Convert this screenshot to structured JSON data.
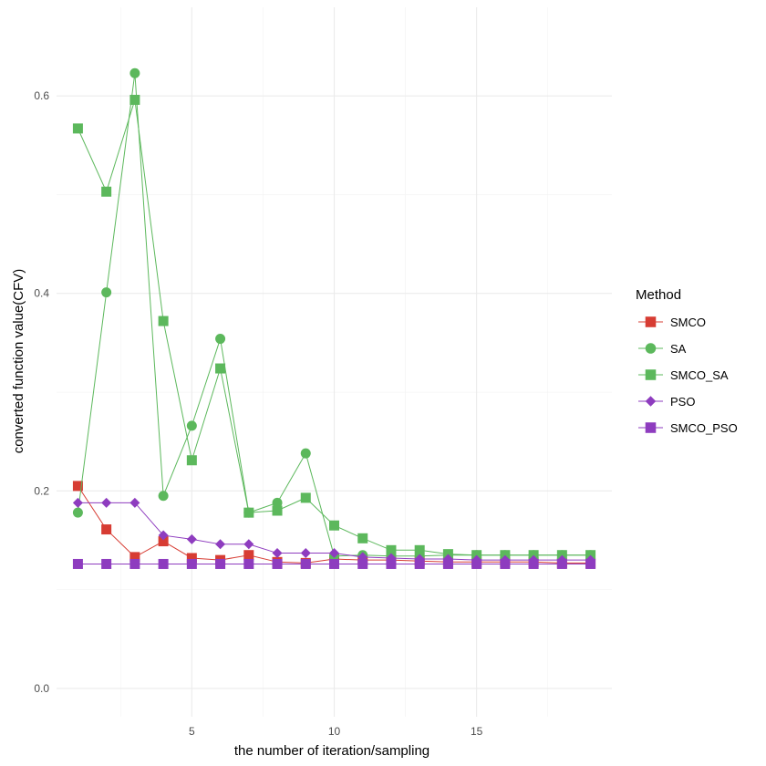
{
  "chart_data": {
    "type": "line",
    "title": "",
    "xlabel": "the number of iteration/sampling",
    "ylabel": "converted function value(CFV)",
    "xlim": [
      0.25,
      19.75
    ],
    "ylim": [
      -0.0287,
      0.6897
    ],
    "xticks": [
      5,
      10,
      15
    ],
    "xtick_labels": [
      "5",
      "10",
      "15"
    ],
    "yticks": [
      0.0,
      0.2,
      0.4,
      0.6
    ],
    "ytick_labels": [
      "0.0",
      "0.2",
      "0.4",
      "0.6"
    ],
    "grid": true,
    "legend_title": "Method",
    "legend_position": "right",
    "x": [
      1,
      2,
      3,
      4,
      5,
      6,
      7,
      8,
      9,
      10,
      11,
      12,
      13,
      14,
      15,
      16,
      17,
      18,
      19
    ],
    "series": [
      {
        "name": "SMCO",
        "color": "#D73C33",
        "marker": "square",
        "values": [
          0.205,
          0.161,
          0.133,
          0.149,
          0.132,
          0.13,
          0.135,
          0.128,
          0.127,
          0.131,
          0.13,
          0.13,
          0.129,
          0.128,
          0.128,
          0.128,
          0.128,
          0.127,
          0.127
        ]
      },
      {
        "name": "SA",
        "color": "#5CB85C",
        "marker": "circle",
        "values": [
          0.178,
          0.401,
          0.623,
          0.195,
          0.266,
          0.354,
          0.178,
          0.188,
          0.238,
          0.134,
          0.135,
          0.134,
          0.134,
          0.135,
          0.135,
          0.135,
          0.135,
          0.135,
          0.135
        ]
      },
      {
        "name": "SMCO_SA",
        "color": "#5CB85C",
        "marker": "square",
        "values": [
          0.567,
          0.503,
          0.596,
          0.372,
          0.231,
          0.324,
          0.178,
          0.18,
          0.193,
          0.165,
          0.152,
          0.14,
          0.14,
          0.136,
          0.135,
          0.135,
          0.135,
          0.135,
          0.135
        ]
      },
      {
        "name": "PSO",
        "color": "#8E3CBF",
        "marker": "diamond",
        "values": [
          0.188,
          0.188,
          0.188,
          0.155,
          0.151,
          0.146,
          0.146,
          0.137,
          0.137,
          0.137,
          0.133,
          0.132,
          0.131,
          0.131,
          0.13,
          0.13,
          0.13,
          0.13,
          0.13
        ]
      },
      {
        "name": "SMCO_PSO",
        "color": "#8E3CBF",
        "marker": "square",
        "values": [
          0.126,
          0.126,
          0.126,
          0.126,
          0.126,
          0.126,
          0.126,
          0.126,
          0.126,
          0.126,
          0.126,
          0.126,
          0.126,
          0.126,
          0.126,
          0.126,
          0.126,
          0.126,
          0.126
        ]
      }
    ]
  }
}
